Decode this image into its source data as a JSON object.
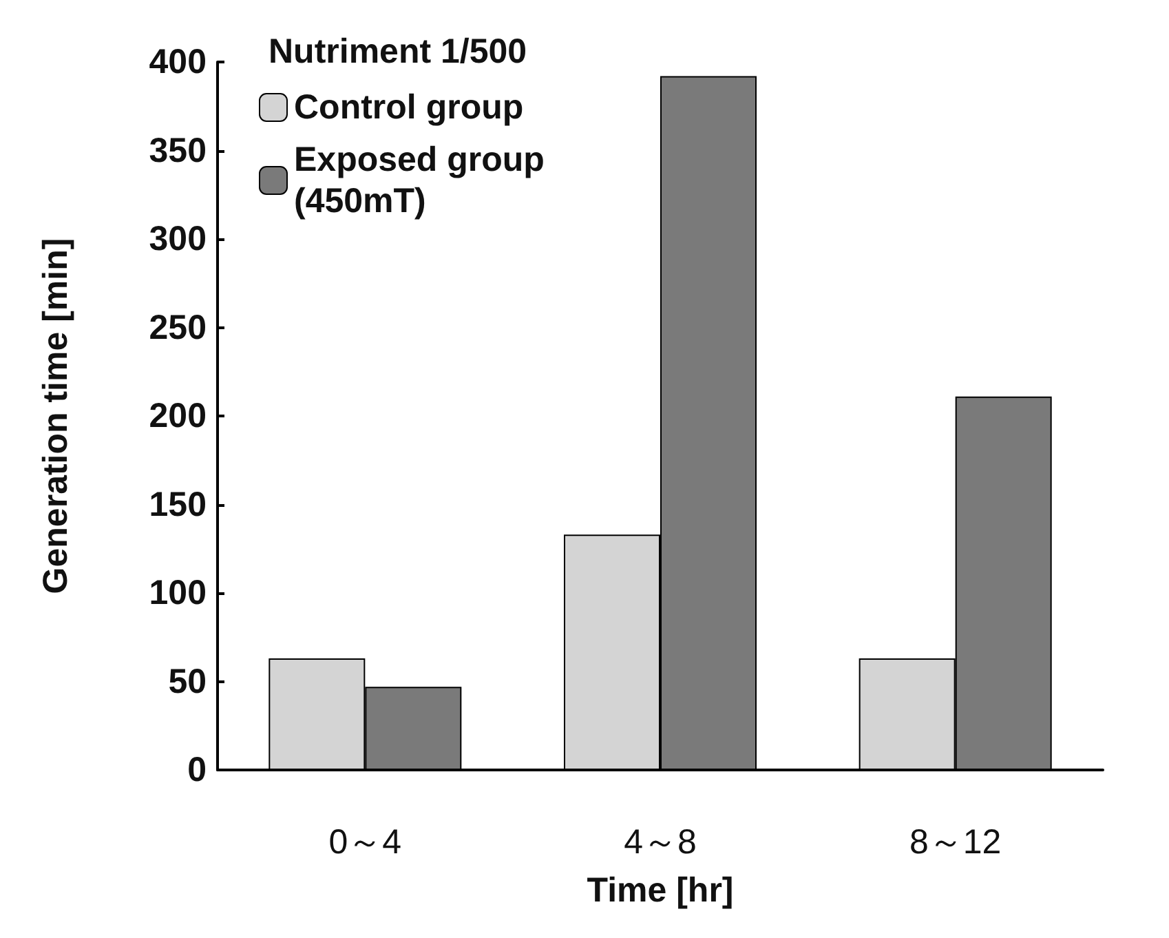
{
  "chart_data": {
    "type": "bar",
    "xlabel": "Time [hr]",
    "ylabel": "Generation time [min]",
    "legend_title": "Nutriment 1/500",
    "categories": [
      "0～4",
      "4～8",
      "8～12"
    ],
    "series": [
      {
        "name": "Control group",
        "color": "#d4d4d4",
        "values": [
          63,
          133,
          63
        ]
      },
      {
        "name": "Exposed group\n(450mT)",
        "color": "#7a7a7a",
        "values": [
          47,
          392,
          211
        ]
      }
    ],
    "ylim": [
      0,
      400
    ],
    "yticks": [
      0,
      50,
      100,
      150,
      200,
      250,
      300,
      350,
      400
    ],
    "grid": false,
    "legend": "top left"
  }
}
